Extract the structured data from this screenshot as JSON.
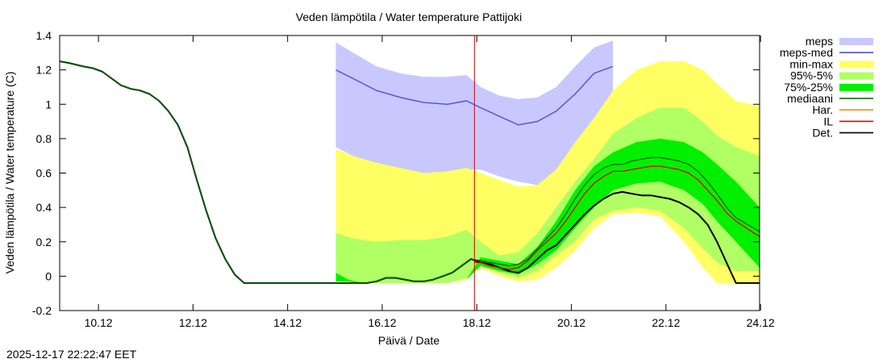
{
  "chart_data": {
    "type": "area",
    "title": "Veden lämpötila / Water temperature Pattijoki",
    "xlabel": "Päivä / Date",
    "ylabel": "Veden lämpötila / Water temperature (C)",
    "ylim": [
      -0.2,
      1.4
    ],
    "xlim": [
      9.3,
      24.1
    ],
    "grid": false,
    "legend_position": "outside-right",
    "x_ticks": [
      {
        "label": "10.12",
        "value": 10.12
      },
      {
        "label": "12.12",
        "value": 12.12
      },
      {
        "label": "14.12",
        "value": 14.12
      },
      {
        "label": "16.12",
        "value": 16.12
      },
      {
        "label": "18.12",
        "value": 18.12
      },
      {
        "label": "20.12",
        "value": 20.12
      },
      {
        "label": "22.12",
        "value": 22.12
      },
      {
        "label": "24.12",
        "value": 24.12
      }
    ],
    "y_ticks": [
      {
        "label": "-0.2",
        "value": -0.2
      },
      {
        "label": "0",
        "value": 0
      },
      {
        "label": "0.2",
        "value": 0.2
      },
      {
        "label": "0.4",
        "value": 0.4
      },
      {
        "label": "0.6",
        "value": 0.6
      },
      {
        "label": "0.8",
        "value": 0.8
      },
      {
        "label": "1",
        "value": 1.0
      },
      {
        "label": "1.2",
        "value": 1.2
      },
      {
        "label": "1.4",
        "value": 1.4
      }
    ],
    "forecast_start_x": 18.07,
    "legend": [
      {
        "key": "meps",
        "label": "meps",
        "style": "band",
        "color": "#c8c8ff"
      },
      {
        "key": "meps_med",
        "label": "meps-med",
        "style": "line",
        "color": "#5050d8"
      },
      {
        "key": "minmax",
        "label": "min-max",
        "style": "band",
        "color": "#ffff64"
      },
      {
        "key": "p95_5",
        "label": "95%-5%",
        "style": "band",
        "color": "#b0ff64"
      },
      {
        "key": "p75_25",
        "label": "75%-25%",
        "style": "band",
        "color": "#00f000"
      },
      {
        "key": "median",
        "label": "mediaani",
        "style": "line",
        "color": "#006400"
      },
      {
        "key": "har",
        "label": "Har.",
        "style": "line",
        "color": "#ff8c00"
      },
      {
        "key": "il",
        "label": "IL",
        "style": "line",
        "color": "#e00000"
      },
      {
        "key": "det",
        "label": "Det.",
        "style": "line",
        "color": "#000000"
      }
    ],
    "bands": [
      {
        "key": "meps",
        "color": "#c8c8ff",
        "x": [
          15.14,
          15.5,
          16.0,
          16.5,
          17.0,
          17.5,
          17.9,
          18.2,
          18.6,
          19.0,
          19.4,
          19.8,
          20.2,
          20.6,
          21.0
        ],
        "lower": [
          0.75,
          0.7,
          0.65,
          0.62,
          0.6,
          0.6,
          0.62,
          0.62,
          0.58,
          0.55,
          0.53,
          0.6,
          0.75,
          0.9,
          1.03
        ],
        "upper": [
          1.36,
          1.3,
          1.22,
          1.18,
          1.16,
          1.16,
          1.17,
          1.1,
          1.05,
          1.03,
          1.04,
          1.1,
          1.22,
          1.33,
          1.37
        ]
      },
      {
        "key": "minmax",
        "color": "#ffff64",
        "x": [
          15.14,
          15.5,
          16.0,
          16.5,
          17.0,
          17.5,
          17.9,
          18.2,
          18.6,
          19.0,
          19.4,
          19.8,
          20.2,
          20.6,
          21.0,
          21.5,
          22.0,
          22.5,
          22.9,
          23.2,
          23.6,
          24.1
        ],
        "lower": [
          -0.03,
          -0.04,
          -0.04,
          -0.04,
          -0.04,
          -0.04,
          -0.02,
          0.05,
          0.0,
          -0.03,
          -0.02,
          0.05,
          0.15,
          0.28,
          0.36,
          0.37,
          0.35,
          0.2,
          0.05,
          -0.04,
          -0.04,
          -0.04
        ],
        "upper": [
          0.74,
          0.7,
          0.66,
          0.63,
          0.6,
          0.61,
          0.63,
          0.6,
          0.56,
          0.52,
          0.53,
          0.62,
          0.78,
          0.92,
          1.08,
          1.2,
          1.25,
          1.25,
          1.2,
          1.12,
          1.02,
          0.99
        ]
      },
      {
        "key": "p95_5",
        "color": "#b0ff64",
        "x": [
          15.14,
          15.5,
          16.0,
          16.5,
          17.0,
          17.5,
          17.9,
          18.2,
          18.6,
          19.0,
          19.4,
          19.8,
          20.2,
          20.6,
          21.0,
          21.5,
          22.0,
          22.5,
          22.9,
          23.2,
          23.6,
          24.1
        ],
        "lower": [
          -0.02,
          -0.04,
          -0.04,
          -0.04,
          -0.04,
          -0.04,
          -0.01,
          0.06,
          0.02,
          -0.01,
          0.03,
          0.12,
          0.2,
          0.33,
          0.38,
          0.4,
          0.38,
          0.28,
          0.16,
          0.08,
          0.03,
          0.03
        ],
        "upper": [
          0.25,
          0.22,
          0.2,
          0.21,
          0.21,
          0.23,
          0.27,
          0.2,
          0.12,
          0.14,
          0.25,
          0.4,
          0.55,
          0.68,
          0.83,
          0.92,
          0.98,
          0.98,
          0.9,
          0.82,
          0.75,
          0.7
        ]
      },
      {
        "key": "p75_25",
        "color": "#00f000",
        "x": [
          15.14,
          15.4,
          15.7,
          16.0,
          16.5,
          17.0,
          17.5,
          17.9,
          18.2,
          18.6,
          19.0,
          19.4,
          19.8,
          20.2,
          20.6,
          21.0,
          21.5,
          22.0,
          22.5,
          22.9,
          23.2,
          23.6,
          24.1
        ],
        "lower": [
          -0.03,
          -0.03,
          -0.04,
          -0.04,
          -0.04,
          -0.04,
          -0.04,
          -0.02,
          0.06,
          0.03,
          0.01,
          0.07,
          0.15,
          0.28,
          0.4,
          0.5,
          0.54,
          0.55,
          0.5,
          0.42,
          0.32,
          0.2,
          0.05
        ],
        "upper": [
          0.02,
          -0.02,
          -0.04,
          -0.04,
          -0.04,
          -0.04,
          -0.04,
          -0.02,
          0.11,
          0.09,
          0.07,
          0.17,
          0.32,
          0.5,
          0.64,
          0.72,
          0.78,
          0.8,
          0.78,
          0.72,
          0.65,
          0.55,
          0.4
        ]
      }
    ],
    "series": [
      {
        "name": "Det.",
        "color": "#000000",
        "width": 2,
        "x": [
          9.3,
          9.5,
          9.8,
          10.0,
          10.2,
          10.4,
          10.6,
          10.8,
          11.0,
          11.2,
          11.4,
          11.6,
          11.8,
          12.0,
          12.2,
          12.4,
          12.6,
          12.8,
          13.0,
          13.2,
          13.4,
          13.6,
          14.0,
          14.5,
          15.0,
          15.5,
          15.8,
          16.0,
          16.2,
          16.4,
          16.6,
          16.8,
          17.0,
          17.2,
          17.4,
          17.6,
          17.8,
          17.9,
          18.0,
          18.2,
          18.4,
          18.6,
          18.8,
          19.0,
          19.2,
          19.4,
          19.6,
          19.8,
          20.0,
          20.2,
          20.4,
          20.6,
          20.8,
          21.0,
          21.2,
          21.4,
          21.6,
          21.8,
          22.0,
          22.2,
          22.4,
          22.6,
          22.8,
          23.0,
          23.2,
          23.4,
          23.6,
          24.1
        ],
        "y": [
          1.25,
          1.24,
          1.22,
          1.21,
          1.19,
          1.15,
          1.11,
          1.09,
          1.08,
          1.06,
          1.02,
          0.96,
          0.88,
          0.75,
          0.56,
          0.38,
          0.22,
          0.1,
          0.01,
          -0.04,
          -0.04,
          -0.04,
          -0.04,
          -0.04,
          -0.04,
          -0.04,
          -0.04,
          -0.03,
          -0.01,
          -0.01,
          -0.02,
          -0.03,
          -0.03,
          -0.02,
          0.0,
          0.02,
          0.06,
          0.08,
          0.1,
          0.08,
          0.07,
          0.05,
          0.03,
          0.02,
          0.05,
          0.1,
          0.15,
          0.18,
          0.24,
          0.3,
          0.36,
          0.41,
          0.45,
          0.48,
          0.49,
          0.48,
          0.47,
          0.47,
          0.46,
          0.45,
          0.43,
          0.4,
          0.36,
          0.3,
          0.2,
          0.08,
          -0.04,
          -0.04
        ]
      },
      {
        "name": "mediaani",
        "color": "#006400",
        "width": 1.3,
        "x": [
          9.3,
          9.5,
          9.8,
          10.0,
          10.2,
          10.4,
          10.6,
          10.8,
          11.0,
          11.2,
          11.4,
          11.6,
          11.8,
          12.0,
          12.2,
          12.4,
          12.6,
          12.8,
          13.0,
          13.2,
          13.4,
          13.6,
          14.0,
          14.5,
          15.0,
          15.5,
          15.8,
          16.0,
          16.2,
          16.4,
          16.6,
          16.8,
          17.0,
          17.2,
          17.4,
          17.6,
          17.8,
          17.9,
          18.0,
          18.2,
          18.4,
          18.6,
          18.8,
          19.0,
          19.2,
          19.4,
          19.6,
          19.8,
          20.0,
          20.2,
          20.4,
          20.6,
          20.8,
          21.0,
          21.2,
          21.4,
          21.6,
          21.8,
          22.0,
          22.2,
          22.4,
          22.6,
          22.8,
          23.0,
          23.2,
          23.4,
          23.6,
          24.1
        ],
        "y": [
          1.25,
          1.24,
          1.22,
          1.21,
          1.19,
          1.15,
          1.11,
          1.09,
          1.08,
          1.06,
          1.02,
          0.96,
          0.88,
          0.75,
          0.56,
          0.38,
          0.22,
          0.1,
          0.01,
          -0.04,
          -0.04,
          -0.04,
          -0.04,
          -0.04,
          -0.04,
          -0.04,
          -0.04,
          -0.03,
          -0.01,
          -0.01,
          -0.02,
          -0.03,
          -0.03,
          -0.02,
          0.0,
          0.02,
          0.06,
          0.08,
          0.1,
          0.09,
          0.08,
          0.07,
          0.06,
          0.07,
          0.1,
          0.16,
          0.22,
          0.28,
          0.36,
          0.45,
          0.53,
          0.59,
          0.63,
          0.65,
          0.65,
          0.67,
          0.68,
          0.69,
          0.69,
          0.68,
          0.67,
          0.65,
          0.61,
          0.55,
          0.48,
          0.4,
          0.34,
          0.26
        ]
      },
      {
        "name": "IL",
        "color": "#e00000",
        "width": 1.3,
        "x": [
          18.07,
          18.2,
          18.4,
          18.6,
          18.8,
          19.0,
          19.2,
          19.4,
          19.6,
          19.8,
          20.0,
          20.2,
          20.4,
          20.6,
          20.8,
          21.0,
          21.2,
          21.4,
          21.6,
          21.8,
          22.0,
          22.2,
          22.4,
          22.6,
          22.8,
          23.0,
          23.2,
          23.4,
          23.6,
          24.1
        ],
        "y": [
          0.08,
          0.08,
          0.06,
          0.05,
          0.04,
          0.05,
          0.09,
          0.15,
          0.2,
          0.25,
          0.32,
          0.4,
          0.48,
          0.54,
          0.58,
          0.61,
          0.61,
          0.62,
          0.63,
          0.64,
          0.64,
          0.63,
          0.62,
          0.6,
          0.56,
          0.5,
          0.44,
          0.37,
          0.32,
          0.23
        ]
      }
    ]
  },
  "footer": {
    "timestamp": "2025-12-17 22:22:47 EET"
  }
}
